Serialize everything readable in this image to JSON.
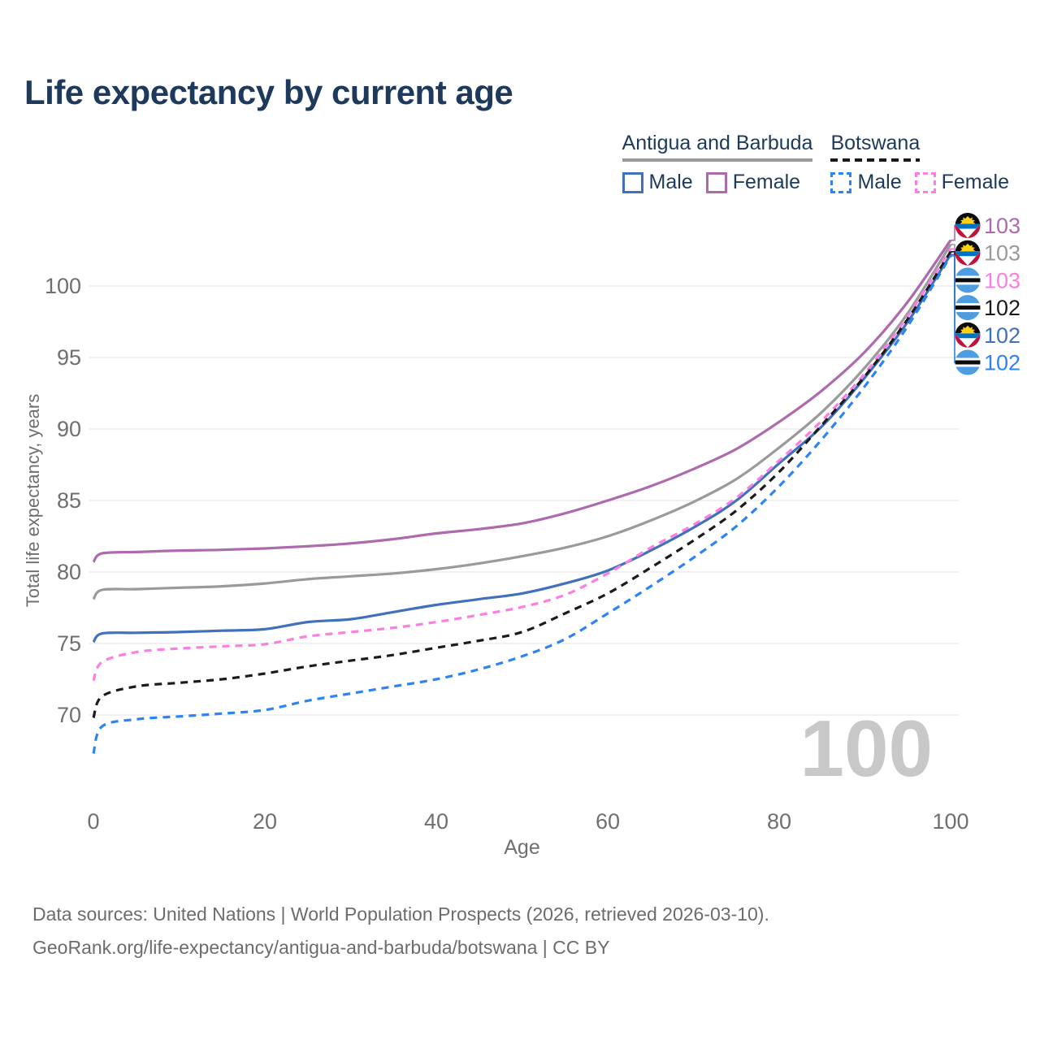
{
  "title": "Life expectancy by current age",
  "legend": {
    "groups": [
      {
        "name": "Antigua and Barbuda",
        "line_style": "solid",
        "line_color": "#999999",
        "items": [
          {
            "label": "Male",
            "series": 2
          },
          {
            "label": "Female",
            "series": 0
          }
        ]
      },
      {
        "name": "Botswana",
        "line_style": "dashed",
        "line_color": "#1a1a1a",
        "items": [
          {
            "label": "Male",
            "series": 5
          },
          {
            "label": "Female",
            "series": 3
          }
        ]
      }
    ]
  },
  "chart_data": {
    "type": "line",
    "title": "Life expectancy by current age",
    "xlabel": "Age",
    "ylabel": "Total life expectancy, years",
    "xlim": [
      0,
      100
    ],
    "ylim": [
      66,
      104
    ],
    "xticks": [
      0,
      20,
      40,
      60,
      80,
      100
    ],
    "yticks": [
      70,
      75,
      80,
      85,
      90,
      95,
      100
    ],
    "grid": "horizontal",
    "legend_position": "top-right",
    "watermark": "100",
    "x": [
      0,
      1,
      5,
      10,
      15,
      20,
      25,
      30,
      35,
      40,
      45,
      50,
      55,
      60,
      65,
      70,
      75,
      80,
      85,
      90,
      95,
      100
    ],
    "series": [
      {
        "id": "antigua-and-barbuda-female",
        "name": "Antigua and Barbuda — Female",
        "country": "antigua-and-barbuda",
        "sex": "Female",
        "color": "#ad6aad",
        "dash": "solid",
        "end_label": "103",
        "label_row": 0,
        "values": [
          80.7,
          81.3,
          81.4,
          81.5,
          81.55,
          81.65,
          81.8,
          82.0,
          82.3,
          82.7,
          83.0,
          83.4,
          84.1,
          85.0,
          86.0,
          87.2,
          88.6,
          90.5,
          92.7,
          95.4,
          98.9,
          103.2
        ]
      },
      {
        "id": "antigua-and-barbuda",
        "name": "Antigua and Barbuda",
        "country": "antigua-and-barbuda",
        "sex": "Both",
        "color": "#9a9a9a",
        "dash": "solid",
        "end_label": "103",
        "label_row": 1,
        "values": [
          78.1,
          78.75,
          78.8,
          78.9,
          79.0,
          79.2,
          79.5,
          79.7,
          79.9,
          80.2,
          80.6,
          81.1,
          81.7,
          82.5,
          83.6,
          84.9,
          86.5,
          88.7,
          91.2,
          94.3,
          98.1,
          102.9
        ]
      },
      {
        "id": "antigua-and-barbuda-male",
        "name": "Antigua and Barbuda — Male",
        "country": "antigua-and-barbuda",
        "sex": "Male",
        "color": "#4170bd",
        "dash": "solid",
        "end_label": "102",
        "label_row": 4,
        "values": [
          75.1,
          75.7,
          75.75,
          75.8,
          75.9,
          76.0,
          76.5,
          76.7,
          77.2,
          77.7,
          78.1,
          78.5,
          79.2,
          80.1,
          81.5,
          83.1,
          85.0,
          87.6,
          90.2,
          93.6,
          97.5,
          102.2
        ]
      },
      {
        "id": "botswana-female",
        "name": "Botswana — Female",
        "country": "botswana",
        "sex": "Female",
        "color": "#fb7ee0",
        "dash": "dashed",
        "end_label": "103",
        "label_row": 2,
        "values": [
          72.4,
          73.7,
          74.4,
          74.65,
          74.8,
          74.95,
          75.5,
          75.8,
          76.1,
          76.5,
          77.0,
          77.55,
          78.4,
          79.9,
          81.7,
          83.3,
          85.2,
          87.8,
          90.6,
          93.9,
          97.9,
          102.6
        ]
      },
      {
        "id": "botswana",
        "name": "Botswana",
        "country": "botswana",
        "sex": "Both",
        "color": "#1b1b1b",
        "dash": "dashed",
        "end_label": "102",
        "label_row": 3,
        "values": [
          69.8,
          71.3,
          72.0,
          72.25,
          72.5,
          72.9,
          73.4,
          73.8,
          74.2,
          74.7,
          75.2,
          75.8,
          77.1,
          78.5,
          80.3,
          82.2,
          84.3,
          87.0,
          90.3,
          93.7,
          97.7,
          102.4
        ]
      },
      {
        "id": "botswana-male",
        "name": "Botswana — Male",
        "country": "botswana",
        "sex": "Male",
        "color": "#2e83f2",
        "dash": "dashed",
        "end_label": "102",
        "label_row": 5,
        "values": [
          67.3,
          69.2,
          69.7,
          69.9,
          70.1,
          70.35,
          71.0,
          71.5,
          72.0,
          72.5,
          73.2,
          74.1,
          75.3,
          77.1,
          79.0,
          81.0,
          83.2,
          86.0,
          89.3,
          93.0,
          97.2,
          102.1
        ]
      }
    ]
  },
  "footer": {
    "line1": "Data sources: United Nations | World Population Prospects (2026, retrieved 2026-03-10).",
    "line2": "GeoRank.org/life-expectancy/antigua-and-barbuda/botswana | CC BY"
  }
}
